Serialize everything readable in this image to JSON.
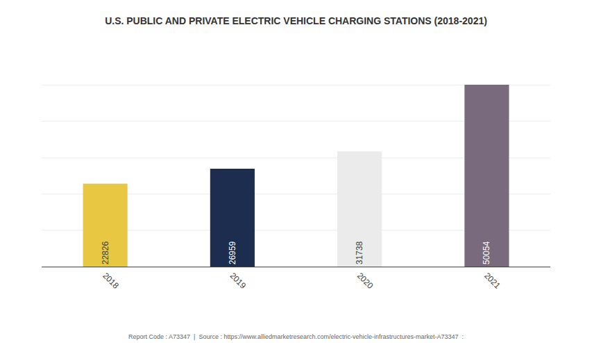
{
  "chart_data": {
    "type": "bar",
    "title": "U.S. PUBLIC AND PRIVATE ELECTRIC VEHICLE CHARGING STATIONS (2018-2021)",
    "categories": [
      "2018",
      "2019",
      "2020",
      "2021"
    ],
    "values": [
      22826,
      26959,
      31738,
      50054
    ],
    "colors": [
      "#E8C842",
      "#1C2D4F",
      "#EBEBEB",
      "#7A6A7E"
    ],
    "ylim": [
      0,
      60000
    ],
    "yticks": [
      0,
      10000,
      20000,
      30000,
      40000,
      50000,
      60000
    ],
    "grid": true,
    "data_labels": true,
    "tick_labels": "x",
    "annotations": [
      "Report Code : A73347  |  Source : https://www.alliedmarketresearch.com/electric-vehicle-infrastructures-market-A73347  :"
    ]
  }
}
